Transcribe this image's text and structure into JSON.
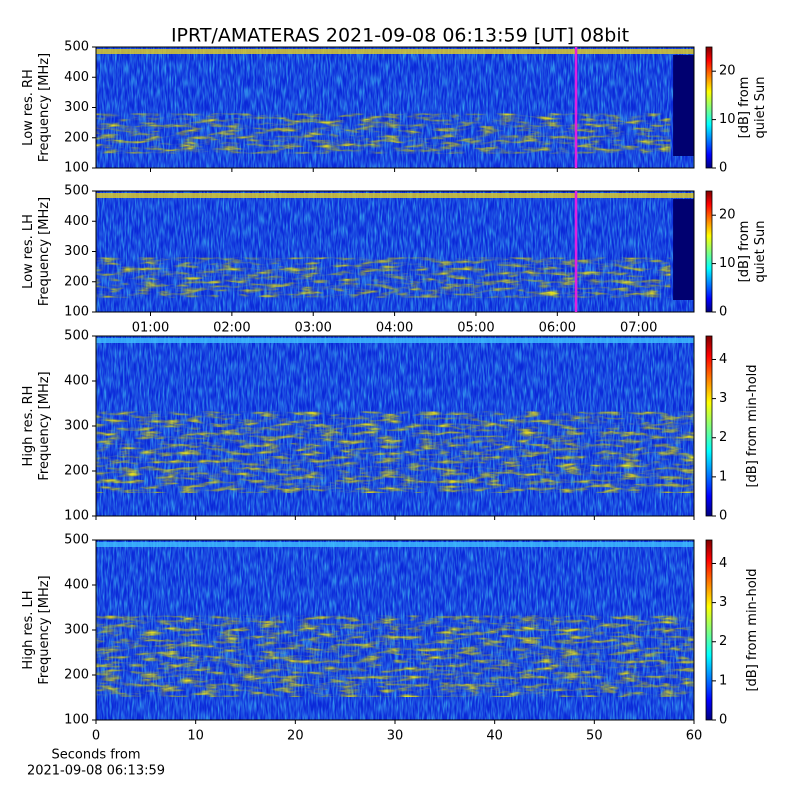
{
  "title": "IPRT/AMATERAS 2021-09-08 06:13:59 [UT]   08bit",
  "chart_data": [
    {
      "type": "heatmap",
      "ylabel": [
        "Low res. RH",
        "Frequency [MHz]"
      ],
      "ylim": [
        100,
        500
      ],
      "yticks": [
        100,
        200,
        300,
        400,
        500
      ],
      "xlim": [
        0.33,
        7.68
      ],
      "marker_x": 6.23,
      "marker_color": "#e020e0",
      "colorbar": {
        "label": [
          "[dB] from",
          "quiet Sun"
        ],
        "clim": [
          0,
          25
        ],
        "ticks": [
          0,
          10,
          20
        ]
      }
    },
    {
      "type": "heatmap",
      "ylabel": [
        "Low res. LH",
        "Frequency [MHz]"
      ],
      "ylim": [
        100,
        500
      ],
      "yticks": [
        100,
        200,
        300,
        400,
        500
      ],
      "xlim": [
        0.33,
        7.68
      ],
      "marker_x": 6.23,
      "marker_color": "#e020e0",
      "xticks": [
        {
          "value": 1,
          "label": "01:00"
        },
        {
          "value": 2,
          "label": "02:00"
        },
        {
          "value": 3,
          "label": "03:00"
        },
        {
          "value": 4,
          "label": "04:00"
        },
        {
          "value": 5,
          "label": "05:00"
        },
        {
          "value": 6,
          "label": "06:00"
        },
        {
          "value": 7,
          "label": "07:00"
        }
      ],
      "colorbar": {
        "label": [
          "[dB] from",
          "quiet Sun"
        ],
        "clim": [
          0,
          25
        ],
        "ticks": [
          0,
          10,
          20
        ]
      }
    },
    {
      "type": "heatmap",
      "ylabel": [
        "High res. RH",
        "Frequency [MHz]"
      ],
      "ylim": [
        100,
        500
      ],
      "yticks": [
        100,
        200,
        300,
        400,
        500
      ],
      "xlim": [
        0,
        60
      ],
      "colorbar": {
        "label": [
          "[dB] from min-hold"
        ],
        "clim": [
          0,
          4.6
        ],
        "ticks": [
          0,
          1,
          2,
          3,
          4
        ]
      }
    },
    {
      "type": "heatmap",
      "ylabel": [
        "High res. LH",
        "Frequency [MHz]"
      ],
      "ylim": [
        100,
        500
      ],
      "yticks": [
        100,
        200,
        300,
        400,
        500
      ],
      "xlim": [
        0,
        60
      ],
      "xticks": [
        0,
        10,
        20,
        30,
        40,
        50,
        60
      ],
      "xlabel": [
        "Seconds from",
        "2021-09-08 06:13:59"
      ],
      "colorbar": {
        "label": [
          "[dB] from min-hold"
        ],
        "clim": [
          0,
          4.6
        ],
        "ticks": [
          0,
          1,
          2,
          3,
          4
        ]
      }
    }
  ]
}
